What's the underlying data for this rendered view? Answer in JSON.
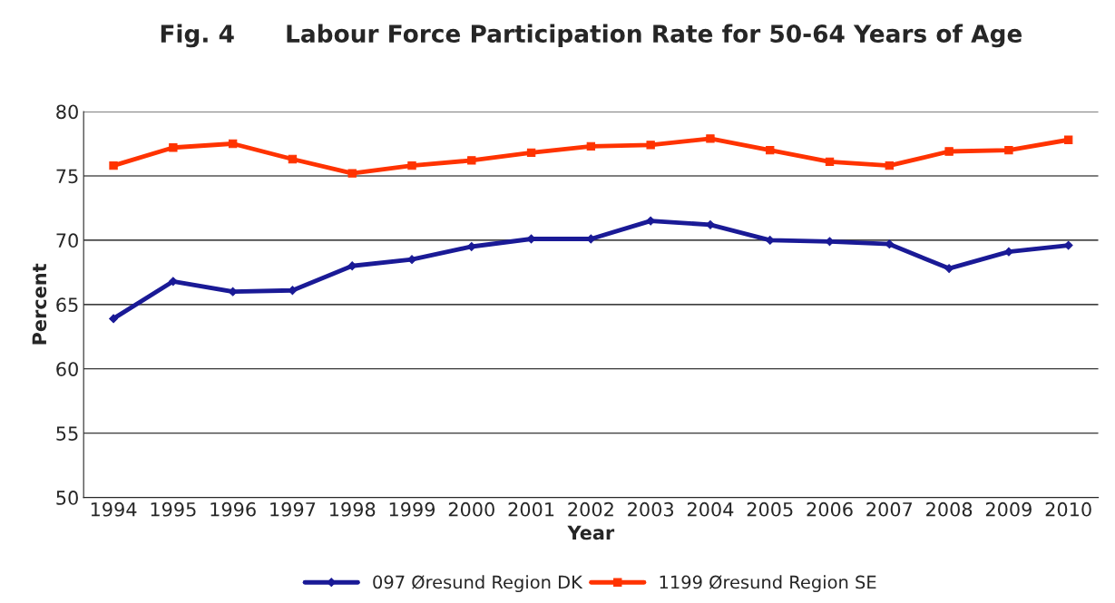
{
  "chart_data": {
    "type": "line",
    "title": "Fig. 4      Labour Force Participation Rate for 50-64 Years of Age",
    "xlabel": "Year",
    "ylabel": "Percent",
    "categories": [
      "1994",
      "1995",
      "1996",
      "1997",
      "1998",
      "1999",
      "2000",
      "2001",
      "2002",
      "2003",
      "2004",
      "2005",
      "2006",
      "2007",
      "2008",
      "2009",
      "2010"
    ],
    "series": [
      {
        "name": "097 Øresund Region DK",
        "color": "#1a1a96",
        "marker": "diamond",
        "values": [
          63.9,
          66.8,
          66.0,
          66.1,
          68.0,
          68.5,
          69.5,
          70.1,
          70.1,
          71.5,
          71.2,
          70.0,
          69.9,
          69.7,
          67.8,
          69.1,
          69.6
        ]
      },
      {
        "name": "1199 Øresund Region SE",
        "color": "#ff3300",
        "marker": "square",
        "values": [
          75.8,
          77.2,
          77.5,
          76.3,
          75.2,
          75.8,
          76.2,
          76.8,
          77.3,
          77.4,
          77.9,
          77.0,
          76.1,
          75.8,
          76.9,
          77.0,
          77.8
        ]
      }
    ],
    "ylim": [
      50,
      80
    ],
    "yticks": [
      50,
      55,
      60,
      65,
      70,
      75,
      80
    ],
    "grid": "y",
    "legend": "bottom",
    "line_style": "solid"
  }
}
